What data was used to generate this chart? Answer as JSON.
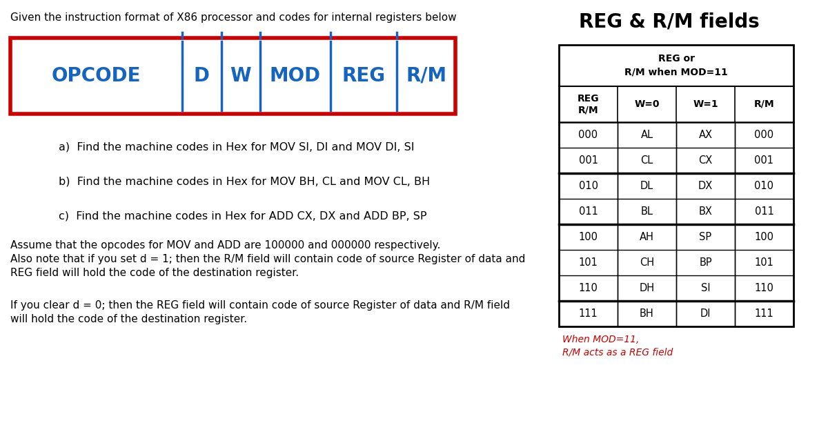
{
  "title_text": "Given the instruction format of X86 processor and codes for internal registers below",
  "opcode_fields": [
    "OPCODE",
    "D",
    "W",
    "MOD",
    "REG",
    "R/M"
  ],
  "opcode_box_color": "#cc0000",
  "opcode_text_color": "#1565c0",
  "divider_color": "#1565c0",
  "questions": [
    "a)  Find the machine codes in Hex for MOV SI, DI and MOV DI, SI",
    "b)  Find the machine codes in Hex for MOV BH, CL and MOV CL, BH",
    "c)  Find the machine codes in Hex for ADD CX, DX and ADD BP, SP"
  ],
  "note1_line1": "Assume that the opcodes for MOV and ADD are 100000 and 000000 respectively.",
  "note1_line2": "Also note that if you set d = 1; then the R/M field will contain code of source Register of data and",
  "note1_line3": "REG field will hold the code of the destination register.",
  "note2_line1": "If you clear d = 0; then the REG field will contain code of source Register of data and R/M field",
  "note2_line2": "will hold the code of the destination register.",
  "table_title": "REG & R/M fields",
  "table_header_row1_line1": "REG or",
  "table_header_row1_line2": "R/M when MOD=11",
  "table_col_headers": [
    "REG\nR/M",
    "W=0",
    "W=1",
    "R/M"
  ],
  "table_rows": [
    [
      "000",
      "AL",
      "AX",
      "000"
    ],
    [
      "001",
      "CL",
      "CX",
      "001"
    ],
    [
      "010",
      "DL",
      "DX",
      "010"
    ],
    [
      "011",
      "BL",
      "BX",
      "011"
    ],
    [
      "100",
      "AH",
      "SP",
      "100"
    ],
    [
      "101",
      "CH",
      "BP",
      "101"
    ],
    [
      "110",
      "DH",
      "SI",
      "110"
    ],
    [
      "111",
      "BH",
      "DI",
      "111"
    ]
  ],
  "table_footer_line1": "When MOD=11,",
  "table_footer_line2": "R/M acts as a REG field",
  "table_footer_color": "#cc0000",
  "background_color": "#ffffff",
  "field_rel_widths": [
    2.2,
    0.5,
    0.5,
    0.9,
    0.85,
    0.75
  ]
}
